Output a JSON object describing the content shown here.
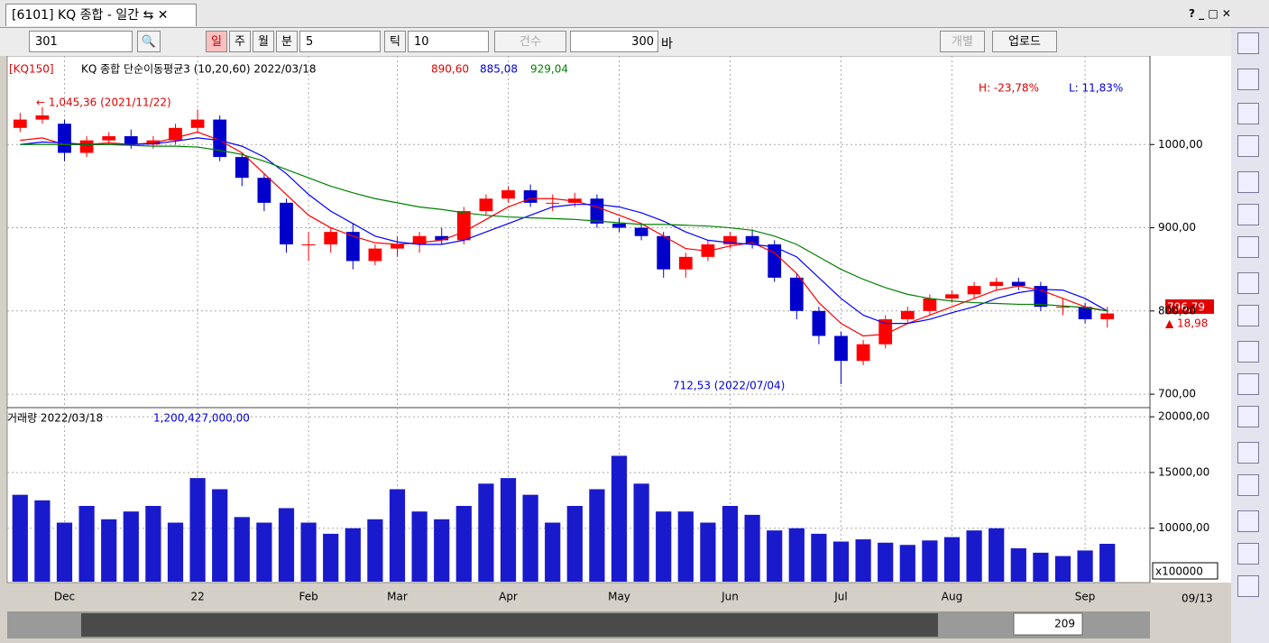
{
  "window": {
    "tab_title": "[6101] KQ 종합 - 일간"
  },
  "toolbar": {
    "code": "301",
    "day": "일",
    "week": "주",
    "month": "월",
    "minute": "분",
    "minute_value": "5",
    "tick": "틱",
    "tick_value": "10",
    "count": "건수",
    "count_value": "300",
    "bar": "바",
    "individual": "개별",
    "upload": "업로드"
  },
  "info": {
    "code": "[KQ150]",
    "label": "KQ 종합 단순이동평균3 (10,20,60) 2022/03/18",
    "ma10": "890,60",
    "ma20": "885,08",
    "ma60": "929,04",
    "high": "H: -23,78%",
    "low": "L: 11,83%",
    "max_note": "← 1,045,36 (2021/11/22)",
    "min_note": "712,53 (2022/07/04)",
    "current": "796,79",
    "change": "▲ 18,98",
    "volume_label": "거래량 2022/03/18",
    "volume_value": "1,200,427,000,00",
    "volume_unit": "x100000",
    "bar_count": "209",
    "date": "09/13"
  },
  "chart_data": [
    {
      "type": "candlestick",
      "categories": [
        null,
        null,
        "Dec",
        null,
        null,
        null,
        null,
        null,
        "22",
        null,
        null,
        null,
        null,
        "Feb",
        null,
        null,
        null,
        "Mar",
        null,
        null,
        null,
        null,
        "Apr",
        null,
        null,
        null,
        null,
        "May",
        null,
        null,
        null,
        null,
        "Jun",
        null,
        null,
        null,
        null,
        "Jul",
        null,
        null,
        null,
        null,
        "Aug",
        null,
        null,
        null,
        null,
        null,
        "Sep",
        null
      ],
      "open": [
        1020,
        1030,
        1025,
        990,
        1005,
        1010,
        1000,
        1005,
        1020,
        1030,
        985,
        960,
        930,
        880,
        880,
        895,
        860,
        875,
        880,
        890,
        885,
        920,
        935,
        945,
        930,
        930,
        935,
        905,
        900,
        890,
        850,
        865,
        880,
        890,
        880,
        840,
        800,
        770,
        740,
        760,
        790,
        800,
        815,
        820,
        830,
        835,
        830,
        805,
        805,
        790
      ],
      "high": [
        1038,
        1045,
        1030,
        1010,
        1015,
        1018,
        1010,
        1025,
        1042,
        1035,
        990,
        965,
        935,
        895,
        900,
        905,
        880,
        890,
        895,
        900,
        925,
        940,
        950,
        952,
        940,
        942,
        940,
        912,
        905,
        895,
        870,
        885,
        895,
        898,
        885,
        845,
        805,
        775,
        765,
        795,
        805,
        820,
        825,
        835,
        840,
        840,
        835,
        815,
        810,
        805
      ],
      "low": [
        1015,
        1025,
        980,
        985,
        1000,
        995,
        995,
        1000,
        1015,
        980,
        950,
        920,
        870,
        860,
        870,
        850,
        855,
        865,
        870,
        880,
        880,
        915,
        930,
        925,
        920,
        925,
        900,
        895,
        885,
        840,
        840,
        860,
        875,
        875,
        835,
        790,
        760,
        712,
        735,
        755,
        785,
        795,
        810,
        815,
        825,
        825,
        800,
        795,
        785,
        780
      ],
      "close": [
        1030,
        1035,
        990,
        1005,
        1010,
        1000,
        1005,
        1020,
        1030,
        985,
        960,
        930,
        880,
        880,
        895,
        860,
        875,
        880,
        890,
        885,
        920,
        935,
        945,
        930,
        930,
        935,
        905,
        900,
        890,
        850,
        865,
        880,
        890,
        880,
        840,
        800,
        770,
        740,
        760,
        790,
        800,
        815,
        820,
        830,
        835,
        830,
        805,
        805,
        790,
        797
      ],
      "up_color": "#ff0000",
      "down_color": "#0000cc",
      "series": [
        {
          "color": "#ff0000",
          "values": [
            1005,
            1008,
            1000,
            1000,
            1002,
            1000,
            1002,
            1008,
            1015,
            1005,
            990,
            965,
            940,
            915,
            900,
            890,
            882,
            880,
            882,
            885,
            895,
            910,
            925,
            935,
            935,
            932,
            925,
            915,
            905,
            890,
            875,
            872,
            878,
            882,
            870,
            845,
            810,
            785,
            770,
            772,
            785,
            795,
            805,
            815,
            825,
            830,
            825,
            815,
            805,
            800
          ]
        },
        {
          "color": "#0000ff",
          "values": [
            1000,
            1003,
            1002,
            1000,
            1000,
            1000,
            1001,
            1004,
            1008,
            1005,
            998,
            985,
            965,
            940,
            920,
            905,
            890,
            883,
            880,
            880,
            885,
            895,
            905,
            915,
            925,
            928,
            928,
            925,
            918,
            908,
            895,
            885,
            882,
            880,
            877,
            865,
            840,
            815,
            795,
            785,
            785,
            790,
            798,
            805,
            815,
            822,
            826,
            825,
            815,
            800
          ]
        },
        {
          "color": "#008000",
          "values": [
            1000,
            1000,
            1000,
            1000,
            1000,
            999,
            998,
            998,
            997,
            993,
            988,
            980,
            970,
            960,
            950,
            942,
            935,
            930,
            925,
            922,
            918,
            915,
            913,
            912,
            911,
            910,
            908,
            906,
            904,
            904,
            903,
            902,
            900,
            897,
            890,
            880,
            865,
            850,
            838,
            828,
            820,
            815,
            812,
            810,
            809,
            808,
            808,
            806,
            804,
            800
          ]
        }
      ],
      "ylim": [
        686,
        1100
      ],
      "yticks": [
        {
          "value": 700,
          "label": "700,00"
        },
        {
          "value": 800,
          "label": "800,00"
        },
        {
          "value": 900,
          "label": "900,00"
        },
        {
          "value": 1000,
          "label": "1000,00"
        }
      ],
      "grid": true
    },
    {
      "type": "bar",
      "color": "#1a1acd",
      "values": [
        13000,
        12500,
        10500,
        12000,
        10800,
        11500,
        12000,
        10500,
        14500,
        13500,
        11000,
        10500,
        11800,
        10500,
        9500,
        10000,
        10800,
        13500,
        11500,
        10800,
        12000,
        14000,
        14500,
        13000,
        10500,
        12000,
        13500,
        16500,
        14000,
        11500,
        11500,
        10500,
        12000,
        11200,
        9800,
        10000,
        9500,
        8800,
        9000,
        8700,
        8500,
        8900,
        9200,
        9800,
        10000,
        8200,
        7800,
        7500,
        8000,
        8600
      ],
      "ylim": [
        5200,
        20500
      ],
      "yticks": [
        {
          "value": 10000,
          "label": "10000,00"
        },
        {
          "value": 15000,
          "label": "15000,00"
        },
        {
          "value": 20000,
          "label": "20000,00"
        }
      ],
      "grid": true
    }
  ]
}
